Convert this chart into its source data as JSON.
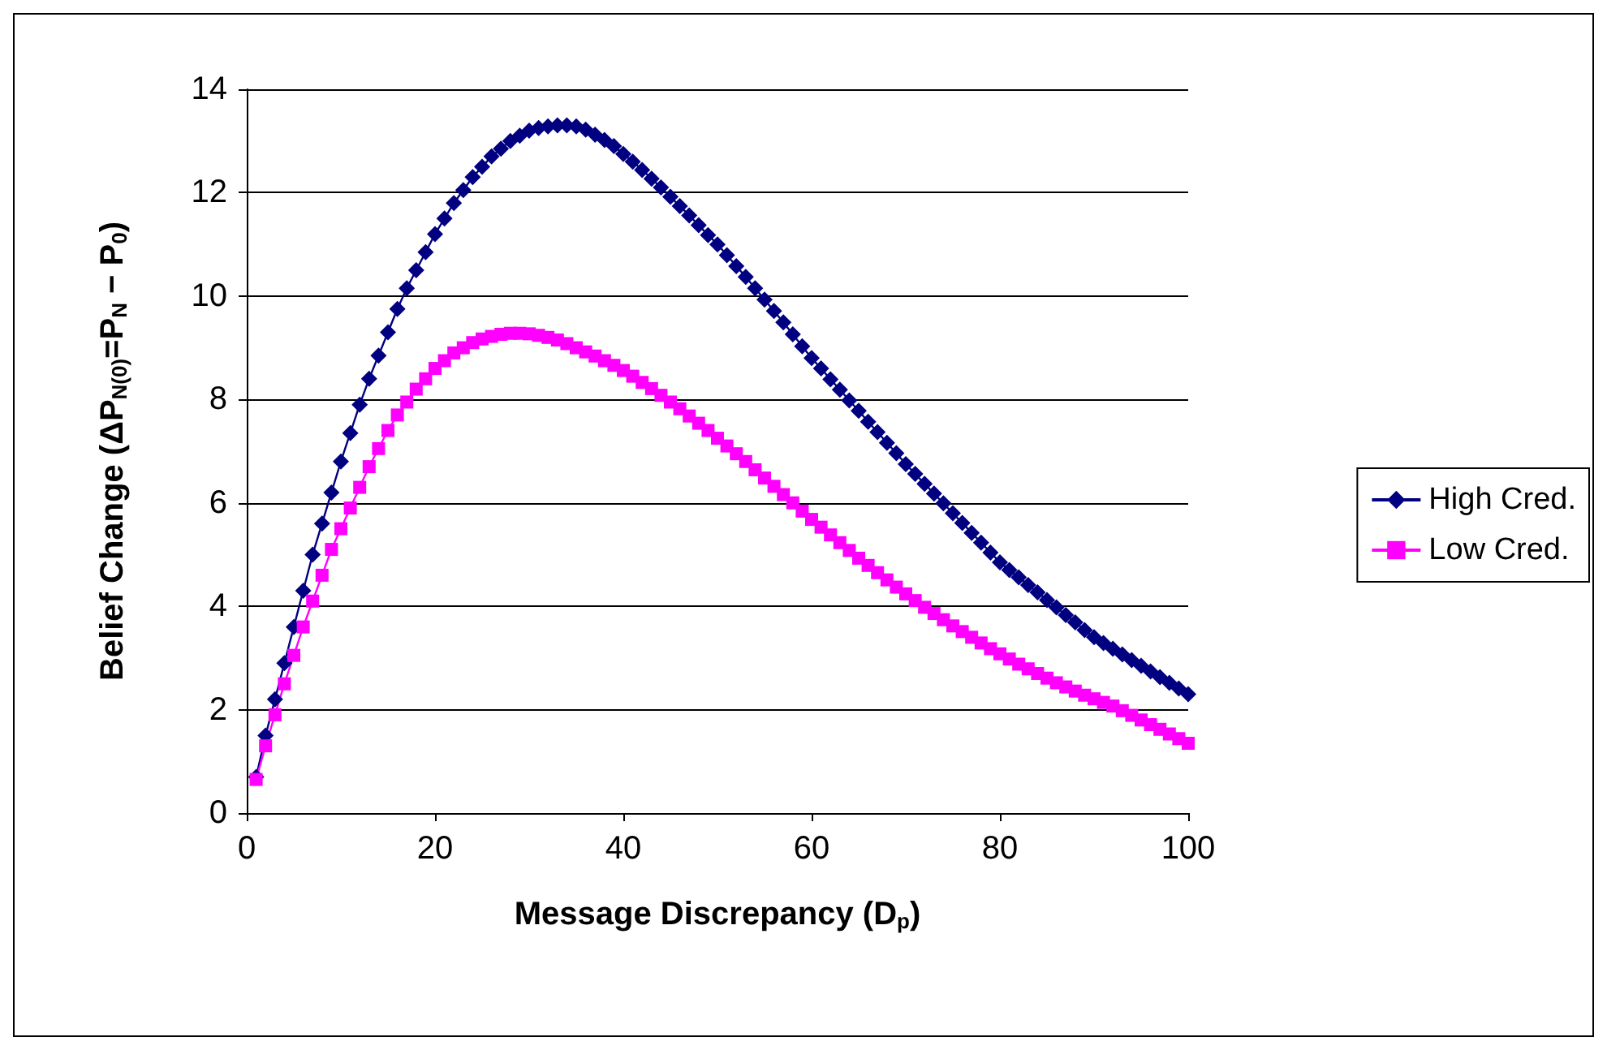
{
  "chart_data": {
    "type": "line",
    "xlabel": "Message Discrepancy (D$_{p}$)",
    "ylabel": "Belief Change (ΔP$_{N(0)}$=P$_{N}$ − P$_{0}$)",
    "x": [
      1,
      2,
      3,
      4,
      5,
      6,
      7,
      8,
      9,
      10,
      11,
      12,
      13,
      14,
      15,
      16,
      17,
      18,
      19,
      20,
      21,
      22,
      23,
      24,
      25,
      26,
      27,
      28,
      29,
      30,
      31,
      32,
      33,
      34,
      35,
      36,
      37,
      38,
      39,
      40,
      41,
      42,
      43,
      44,
      45,
      46,
      47,
      48,
      49,
      50,
      51,
      52,
      53,
      54,
      55,
      56,
      57,
      58,
      59,
      60,
      61,
      62,
      63,
      64,
      65,
      66,
      67,
      68,
      69,
      70,
      71,
      72,
      73,
      74,
      75,
      76,
      77,
      78,
      79,
      80,
      81,
      82,
      83,
      84,
      85,
      86,
      87,
      88,
      89,
      90,
      91,
      92,
      93,
      94,
      95,
      96,
      97,
      98,
      99,
      100
    ],
    "series": [
      {
        "name": "High Cred.",
        "color": "#000080",
        "marker": "diamond",
        "values": [
          0.7,
          1.5,
          2.2,
          2.9,
          3.6,
          4.3,
          5.0,
          5.6,
          6.2,
          6.8,
          7.35,
          7.9,
          8.4,
          8.85,
          9.3,
          9.75,
          10.15,
          10.5,
          10.85,
          11.2,
          11.5,
          11.8,
          12.05,
          12.3,
          12.5,
          12.7,
          12.85,
          13.0,
          13.1,
          13.2,
          13.25,
          13.28,
          13.3,
          13.3,
          13.28,
          13.22,
          13.12,
          13.02,
          12.9,
          12.75,
          12.6,
          12.44,
          12.27,
          12.1,
          11.92,
          11.74,
          11.56,
          11.37,
          11.18,
          11.0,
          10.79,
          10.58,
          10.37,
          10.15,
          9.93,
          9.71,
          9.49,
          9.26,
          9.03,
          8.8,
          8.6,
          8.39,
          8.19,
          7.98,
          7.78,
          7.57,
          7.37,
          7.16,
          6.96,
          6.75,
          6.56,
          6.37,
          6.18,
          5.99,
          5.8,
          5.61,
          5.42,
          5.23,
          5.04,
          4.85,
          4.7,
          4.56,
          4.41,
          4.27,
          4.12,
          3.98,
          3.83,
          3.69,
          3.54,
          3.4,
          3.29,
          3.18,
          3.07,
          2.96,
          2.85,
          2.74,
          2.63,
          2.52,
          2.41,
          2.3
        ]
      },
      {
        "name": "Low Cred.",
        "color": "#ff00ff",
        "marker": "square",
        "values": [
          0.65,
          1.3,
          1.9,
          2.5,
          3.05,
          3.6,
          4.1,
          4.6,
          5.1,
          5.5,
          5.9,
          6.3,
          6.7,
          7.05,
          7.4,
          7.7,
          7.95,
          8.2,
          8.4,
          8.6,
          8.75,
          8.9,
          9.0,
          9.1,
          9.17,
          9.22,
          9.26,
          9.28,
          9.28,
          9.27,
          9.24,
          9.2,
          9.15,
          9.08,
          9.0,
          8.92,
          8.84,
          8.75,
          8.66,
          8.56,
          8.45,
          8.33,
          8.21,
          8.08,
          7.95,
          7.82,
          7.68,
          7.54,
          7.4,
          7.25,
          7.1,
          6.95,
          6.8,
          6.64,
          6.48,
          6.32,
          6.16,
          6.0,
          5.84,
          5.68,
          5.53,
          5.38,
          5.23,
          5.08,
          4.93,
          4.79,
          4.65,
          4.51,
          4.37,
          4.24,
          4.11,
          3.98,
          3.86,
          3.74,
          3.62,
          3.51,
          3.4,
          3.29,
          3.18,
          3.08,
          2.98,
          2.88,
          2.79,
          2.7,
          2.61,
          2.52,
          2.44,
          2.36,
          2.28,
          2.21,
          2.14,
          2.07,
          1.98,
          1.89,
          1.8,
          1.71,
          1.62,
          1.53,
          1.44,
          1.35
        ]
      }
    ],
    "xlim": [
      0,
      100
    ],
    "xticks": [
      0,
      20,
      40,
      60,
      80,
      100
    ],
    "ylim": [
      0,
      14
    ],
    "yticks": [
      0,
      2,
      4,
      6,
      8,
      10,
      12,
      14
    ],
    "grid": "y",
    "legend": "right"
  }
}
